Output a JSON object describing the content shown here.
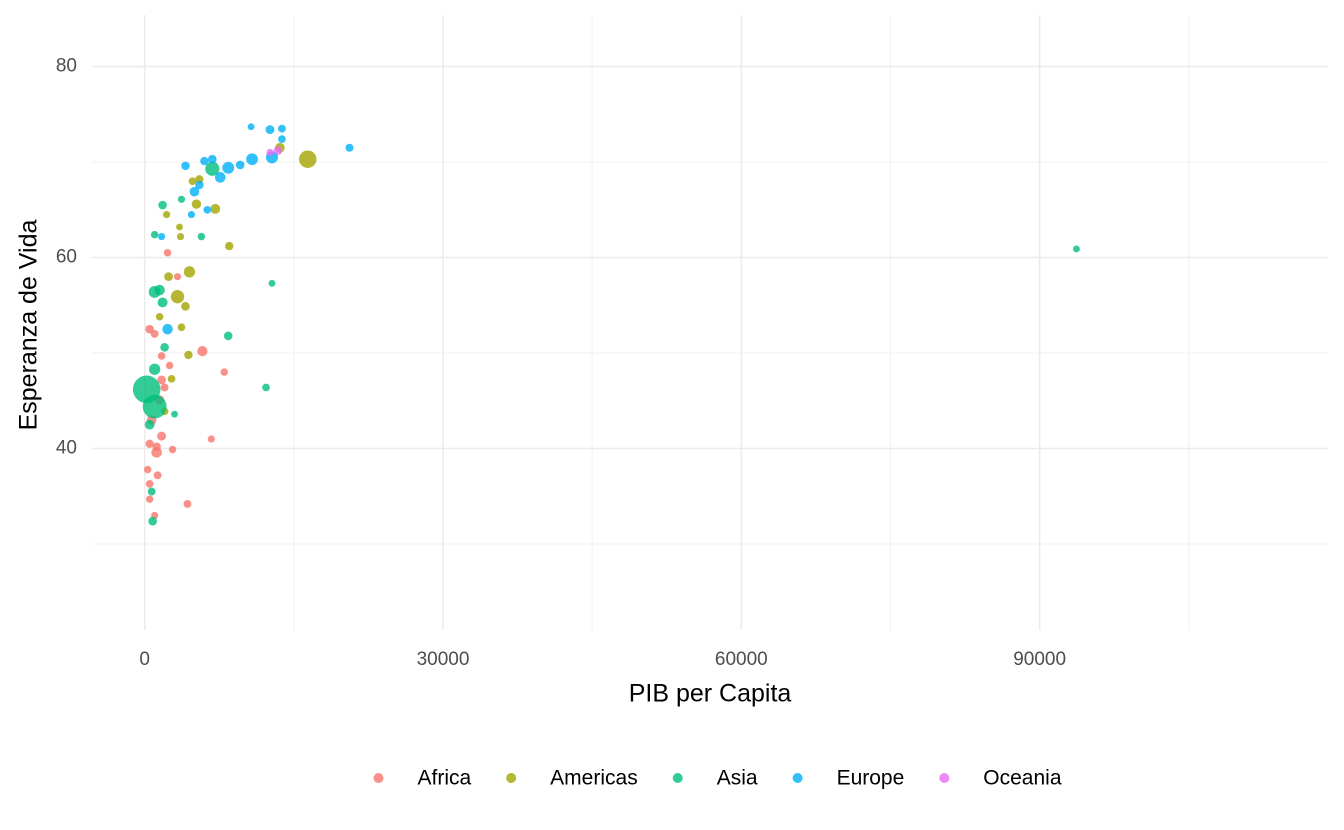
{
  "chart_data": {
    "type": "scatter",
    "x_label": "PIB per Capita",
    "y_label": "Esperanza de Vida",
    "xlim": [
      -5300,
      119000
    ],
    "ylim": [
      21,
      85.4
    ],
    "xticks": [
      0,
      30000,
      60000,
      90000
    ],
    "yticks": [
      40,
      60,
      80
    ],
    "grid": true,
    "legend": "bottom",
    "series": [
      {
        "name": "Africa",
        "color": "#F8766D",
        "x": [
          500,
          1000,
          2300,
          3300,
          5800,
          8000,
          6700,
          4300,
          2800,
          1200,
          1700,
          500,
          500,
          1000,
          1300,
          1500,
          1700,
          300,
          700,
          2000,
          1200,
          1700,
          500,
          2500
        ],
        "values": [
          52.5,
          52,
          60.5,
          58,
          50.2,
          48,
          41,
          34.2,
          39.9,
          40.2,
          41.3,
          36.3,
          34.7,
          33,
          37.2,
          45.1,
          47.2,
          37.8,
          43,
          46.4,
          39.6,
          49.7,
          40.5,
          48.7
        ],
        "sizes": [
          10,
          5,
          3,
          2,
          25,
          3,
          2,
          5,
          3,
          8,
          12,
          4,
          3,
          2,
          5,
          15,
          10,
          3,
          20,
          6,
          30,
          4,
          8,
          3
        ]
      },
      {
        "name": "Americas",
        "color": "#A3A500",
        "x": [
          16400,
          13600,
          7100,
          8500,
          4500,
          3300,
          4100,
          3700,
          1500,
          2200,
          5200,
          5500,
          3500,
          3600,
          2400,
          2700,
          4400,
          2000,
          4800
        ],
        "values": [
          70.3,
          71.5,
          65.1,
          61.2,
          58.5,
          55.9,
          54.9,
          52.7,
          53.8,
          64.5,
          65.6,
          68.2,
          63.2,
          62.2,
          58,
          47.3,
          49.8,
          43.9,
          68
        ],
        "sizes": [
          187,
          19,
          21,
          8,
          40,
          76,
          10,
          4,
          3,
          2,
          17,
          7,
          1,
          2,
          11,
          4,
          8,
          4,
          4
        ]
      },
      {
        "name": "Asia",
        "color": "#00BF7D",
        "x": [
          93700,
          200,
          1000,
          12200,
          12800,
          8400,
          5700,
          6800,
          1800,
          1000,
          1500,
          1000,
          1800,
          2000,
          3000,
          800,
          700,
          1000,
          3700,
          500
        ],
        "values": [
          60.9,
          46.2,
          44.4,
          46.4,
          57.3,
          51.8,
          62.2,
          69.3,
          65.5,
          62.4,
          56.6,
          56.4,
          55.3,
          50.6,
          43.6,
          32.4,
          35.5,
          48.3,
          66.1,
          42.5
        ],
        "sizes": [
          1,
          660,
          454,
          4,
          1,
          10,
          3,
          95,
          10,
          3,
          28,
          50,
          22,
          10,
          1,
          10,
          5,
          40,
          2,
          20
        ]
      },
      {
        "name": "Europe",
        "color": "#00B0F6",
        "x": [
          20600,
          10700,
          12600,
          13800,
          13800,
          12800,
          10800,
          9600,
          8400,
          7600,
          6800,
          6000,
          4100,
          5000,
          6300,
          4700,
          2300,
          1700,
          5500
        ],
        "values": [
          71.5,
          73.7,
          73.4,
          73.5,
          72.4,
          70.5,
          70.3,
          69.7,
          69.4,
          68.4,
          70.3,
          70.1,
          69.6,
          66.9,
          65,
          64.5,
          52.5,
          62.2,
          67.6
        ],
        "sizes": [
          6,
          1,
          12,
          5,
          4,
          53,
          47,
          10,
          50,
          30,
          10,
          8,
          9,
          19,
          4,
          2,
          29,
          2,
          9
        ]
      },
      {
        "name": "Oceania",
        "color": "#E76BF3",
        "x": [
          13400,
          12600
        ],
        "values": [
          71.2,
          71
        ],
        "sizes": [
          10,
          2
        ]
      }
    ]
  }
}
